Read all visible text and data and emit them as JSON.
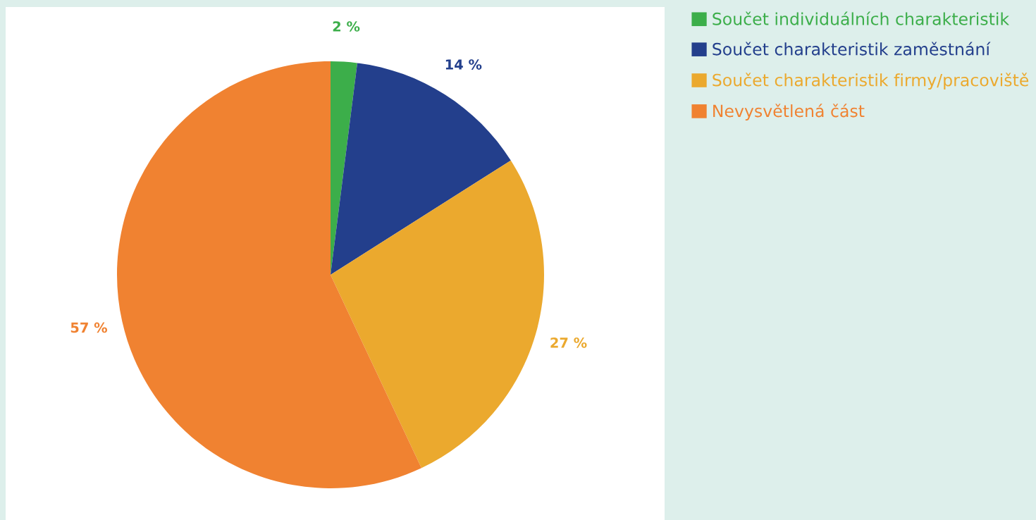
{
  "chart_data": {
    "type": "pie",
    "categories": [
      "Součet individuálních charakteristik",
      "Součet charakteristik zaměstnání",
      "Součet charakteristik firmy/pracoviště",
      "Nevysvětlená část"
    ],
    "values": [
      2,
      14,
      27,
      57
    ],
    "colors": [
      "#3cae4a",
      "#233f8c",
      "#eba92e",
      "#f08231"
    ],
    "value_labels": [
      "2 %",
      "14 %",
      "27 %",
      "57 %"
    ],
    "legend": "top right"
  }
}
